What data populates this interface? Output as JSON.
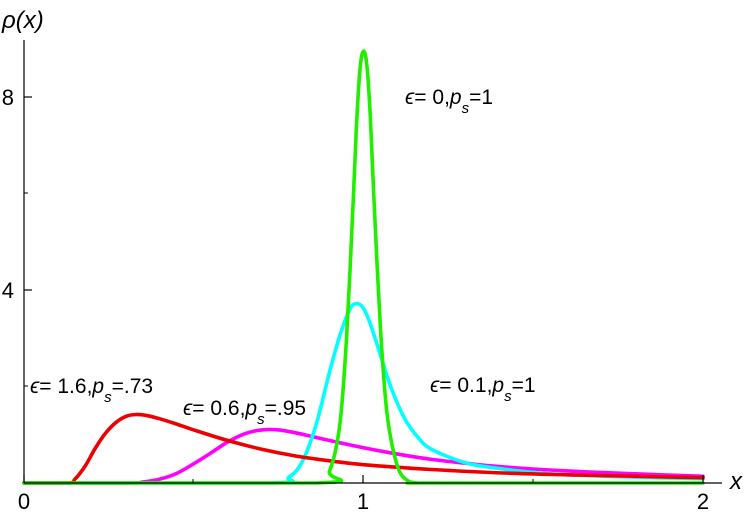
{
  "chart_data": {
    "type": "line",
    "title": "",
    "xlabel": "x",
    "ylabel": "ρ(x)",
    "xlim": [
      0,
      2
    ],
    "ylim": [
      0,
      9.3
    ],
    "x_ticks": [
      {
        "value": 0,
        "label": "0"
      },
      {
        "value": 1,
        "label": "1"
      },
      {
        "value": 2,
        "label": "2"
      }
    ],
    "y_ticks": [
      {
        "value": 4,
        "label": "4"
      },
      {
        "value": 8,
        "label": "8"
      }
    ],
    "grid": false,
    "series": [
      {
        "color": "#ff00ff",
        "x": [
          0,
          0.3,
          0.35,
          0.4,
          0.45,
          0.5,
          0.55,
          0.6,
          0.65,
          0.7,
          0.75,
          0.8,
          0.85,
          0.9,
          1.0,
          1.1,
          1.2,
          1.3,
          1.4,
          1.6,
          1.8,
          2.0
        ],
        "y": [
          0,
          0.0,
          0.02,
          0.08,
          0.2,
          0.4,
          0.62,
          0.85,
          1.02,
          1.1,
          1.1,
          1.04,
          0.96,
          0.88,
          0.73,
          0.6,
          0.49,
          0.41,
          0.34,
          0.25,
          0.19,
          0.14
        ]
      },
      {
        "color": "#00ffff",
        "x": [
          0,
          0.72,
          0.78,
          0.82,
          0.86,
          0.9,
          0.93,
          0.96,
          0.98,
          1.0,
          1.02,
          1.05,
          1.08,
          1.12,
          1.16,
          1.2,
          1.3,
          1.4,
          1.5,
          1.6,
          1.8,
          2.0
        ],
        "y": [
          0,
          0.0,
          0.12,
          0.45,
          1.2,
          2.3,
          3.05,
          3.6,
          3.72,
          3.62,
          3.3,
          2.65,
          2.0,
          1.35,
          0.95,
          0.7,
          0.42,
          0.3,
          0.22,
          0.17,
          0.12,
          0.09
        ]
      },
      {
        "color": "#ee0000",
        "x": [
          0,
          0.13,
          0.15,
          0.18,
          0.21,
          0.24,
          0.27,
          0.3,
          0.33,
          0.36,
          0.4,
          0.45,
          0.5,
          0.6,
          0.7,
          0.8,
          0.9,
          1.0,
          1.2,
          1.4,
          1.6,
          1.8,
          2.0
        ],
        "y": [
          0,
          0.0,
          0.08,
          0.35,
          0.72,
          1.03,
          1.25,
          1.38,
          1.42,
          1.4,
          1.33,
          1.22,
          1.1,
          0.88,
          0.7,
          0.56,
          0.46,
          0.38,
          0.28,
          0.21,
          0.17,
          0.14,
          0.11
        ]
      },
      {
        "color": "#22ee00",
        "x": [
          0,
          0.86,
          0.9,
          0.93,
          0.95,
          0.97,
          0.98,
          0.99,
          1.0,
          1.01,
          1.02,
          1.03,
          1.05,
          1.07,
          1.1,
          1.13,
          1.16,
          1.2,
          2.0
        ],
        "y": [
          0,
          0.0,
          0.25,
          1.2,
          3.0,
          5.9,
          7.5,
          8.6,
          8.95,
          8.65,
          7.6,
          6.0,
          3.2,
          1.4,
          0.35,
          0.05,
          0.0,
          0.0,
          0.0
        ]
      }
    ],
    "annotations": [
      {
        "epsilon": "0",
        "p_s": "1"
      },
      {
        "epsilon": "0.1",
        "p_s": "1"
      },
      {
        "epsilon": "0.6",
        "p_s": ".95"
      },
      {
        "epsilon": "1.6",
        "p_s": ".73"
      }
    ]
  }
}
